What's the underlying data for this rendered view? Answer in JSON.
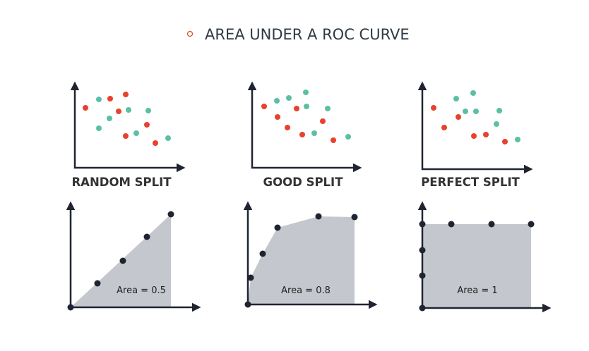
{
  "title": "AREA UNDER A ROC CURVE",
  "panels": [
    {
      "label": "RANDOM SPLIT",
      "area_label": "Area = 0.5"
    },
    {
      "label": "GOOD SPLIT",
      "area_label": "Area = 0.8"
    },
    {
      "label": "PERFECT SPLIT",
      "area_label": "Area = 1"
    }
  ]
}
